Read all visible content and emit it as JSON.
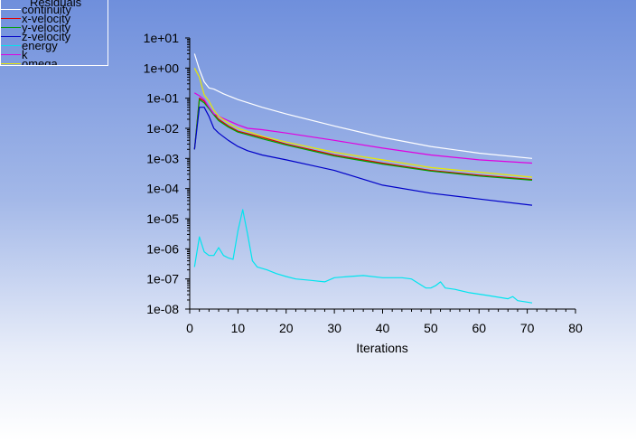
{
  "chart_data": {
    "type": "line",
    "title": "",
    "xlabel": "Iterations",
    "ylabel": "",
    "xlim": [
      0,
      80
    ],
    "ylim_log10": [
      -8,
      1
    ],
    "yscale": "log",
    "x_ticks": [
      0,
      10,
      20,
      30,
      40,
      50,
      60,
      70,
      80
    ],
    "x_tick_labels": [
      "0",
      "10",
      "20",
      "30",
      "40",
      "50",
      "60",
      "70",
      "80"
    ],
    "y_tick_labels": [
      "1e+01",
      "1e+00",
      "1e-01",
      "1e-02",
      "1e-03",
      "1e-04",
      "1e-05",
      "1e-06",
      "1e-07",
      "1e-08"
    ],
    "legend": {
      "title": "Residuals",
      "placement": "top-left"
    },
    "series": [
      {
        "name": "continuity",
        "color": "#ffffff",
        "x": [
          1,
          2,
          3,
          4,
          5,
          7,
          10,
          15,
          20,
          30,
          40,
          50,
          60,
          71
        ],
        "y": [
          3.0,
          0.9,
          0.35,
          0.22,
          0.2,
          0.14,
          0.09,
          0.05,
          0.03,
          0.012,
          0.005,
          0.0025,
          0.0015,
          0.001
        ]
      },
      {
        "name": "x-velocity",
        "color": "#e00000",
        "x": [
          1,
          2,
          3,
          4,
          5,
          6,
          8,
          10,
          15,
          20,
          30,
          40,
          50,
          60,
          71
        ],
        "y": [
          0.002,
          0.1,
          0.08,
          0.05,
          0.03,
          0.02,
          0.012,
          0.008,
          0.005,
          0.003,
          0.0013,
          0.0007,
          0.0004,
          0.00028,
          0.0002
        ]
      },
      {
        "name": "y-velocity",
        "color": "#00a000",
        "x": [
          1,
          2,
          3,
          4,
          5,
          6,
          8,
          10,
          15,
          20,
          30,
          40,
          50,
          60,
          71
        ],
        "y": [
          0.002,
          0.09,
          0.07,
          0.045,
          0.028,
          0.018,
          0.011,
          0.0075,
          0.0045,
          0.0028,
          0.0012,
          0.00065,
          0.00038,
          0.00026,
          0.00019
        ]
      },
      {
        "name": "z-velocity",
        "color": "#0000c8",
        "x": [
          1,
          2,
          3,
          4,
          5,
          6,
          8,
          10,
          12,
          15,
          20,
          25,
          30,
          40,
          50,
          60,
          71
        ],
        "y": [
          0.002,
          0.05,
          0.05,
          0.025,
          0.01,
          0.007,
          0.004,
          0.0025,
          0.0018,
          0.0013,
          0.0009,
          0.0006,
          0.0004,
          0.00013,
          7e-05,
          4.5e-05,
          2.8e-05
        ]
      },
      {
        "name": "energy",
        "color": "#00e5ee",
        "x": [
          1,
          2,
          3,
          4,
          5,
          6,
          7,
          8,
          9,
          10,
          11,
          12,
          13,
          14,
          16,
          18,
          20,
          22,
          25,
          28,
          30,
          33,
          36,
          40,
          44,
          46,
          49,
          50,
          51,
          52,
          53,
          55,
          58,
          62,
          66,
          67,
          68,
          70,
          71
        ],
        "y": [
          2.5e-07,
          2.5e-06,
          8e-07,
          6e-07,
          6e-07,
          1.1e-06,
          6e-07,
          5e-07,
          4.5e-07,
          4e-06,
          2e-05,
          3e-06,
          4e-07,
          2.5e-07,
          2e-07,
          1.5e-07,
          1.2e-07,
          1e-07,
          9e-08,
          8e-08,
          1.1e-07,
          1.2e-07,
          1.3e-07,
          1.1e-07,
          1.1e-07,
          1e-07,
          5e-08,
          5e-08,
          6e-08,
          8e-08,
          5e-08,
          4.5e-08,
          3.5e-08,
          2.8e-08,
          2.2e-08,
          2.6e-08,
          1.9e-08,
          1.7e-08,
          1.6e-08
        ]
      },
      {
        "name": "k",
        "color": "#e000e0",
        "x": [
          1,
          2,
          3,
          4,
          5,
          6,
          8,
          10,
          12,
          15,
          20,
          30,
          40,
          50,
          60,
          71
        ],
        "y": [
          0.15,
          0.12,
          0.09,
          0.05,
          0.03,
          0.025,
          0.018,
          0.013,
          0.01,
          0.009,
          0.007,
          0.004,
          0.0022,
          0.0013,
          0.0009,
          0.0007
        ]
      },
      {
        "name": "omega",
        "color": "#e8e800",
        "x": [
          1,
          2,
          3,
          4,
          5,
          6,
          8,
          10,
          15,
          20,
          30,
          40,
          50,
          60,
          71
        ],
        "y": [
          1.0,
          0.5,
          0.13,
          0.08,
          0.04,
          0.025,
          0.015,
          0.01,
          0.0055,
          0.0035,
          0.0016,
          0.0009,
          0.0005,
          0.00035,
          0.00024
        ]
      }
    ]
  }
}
